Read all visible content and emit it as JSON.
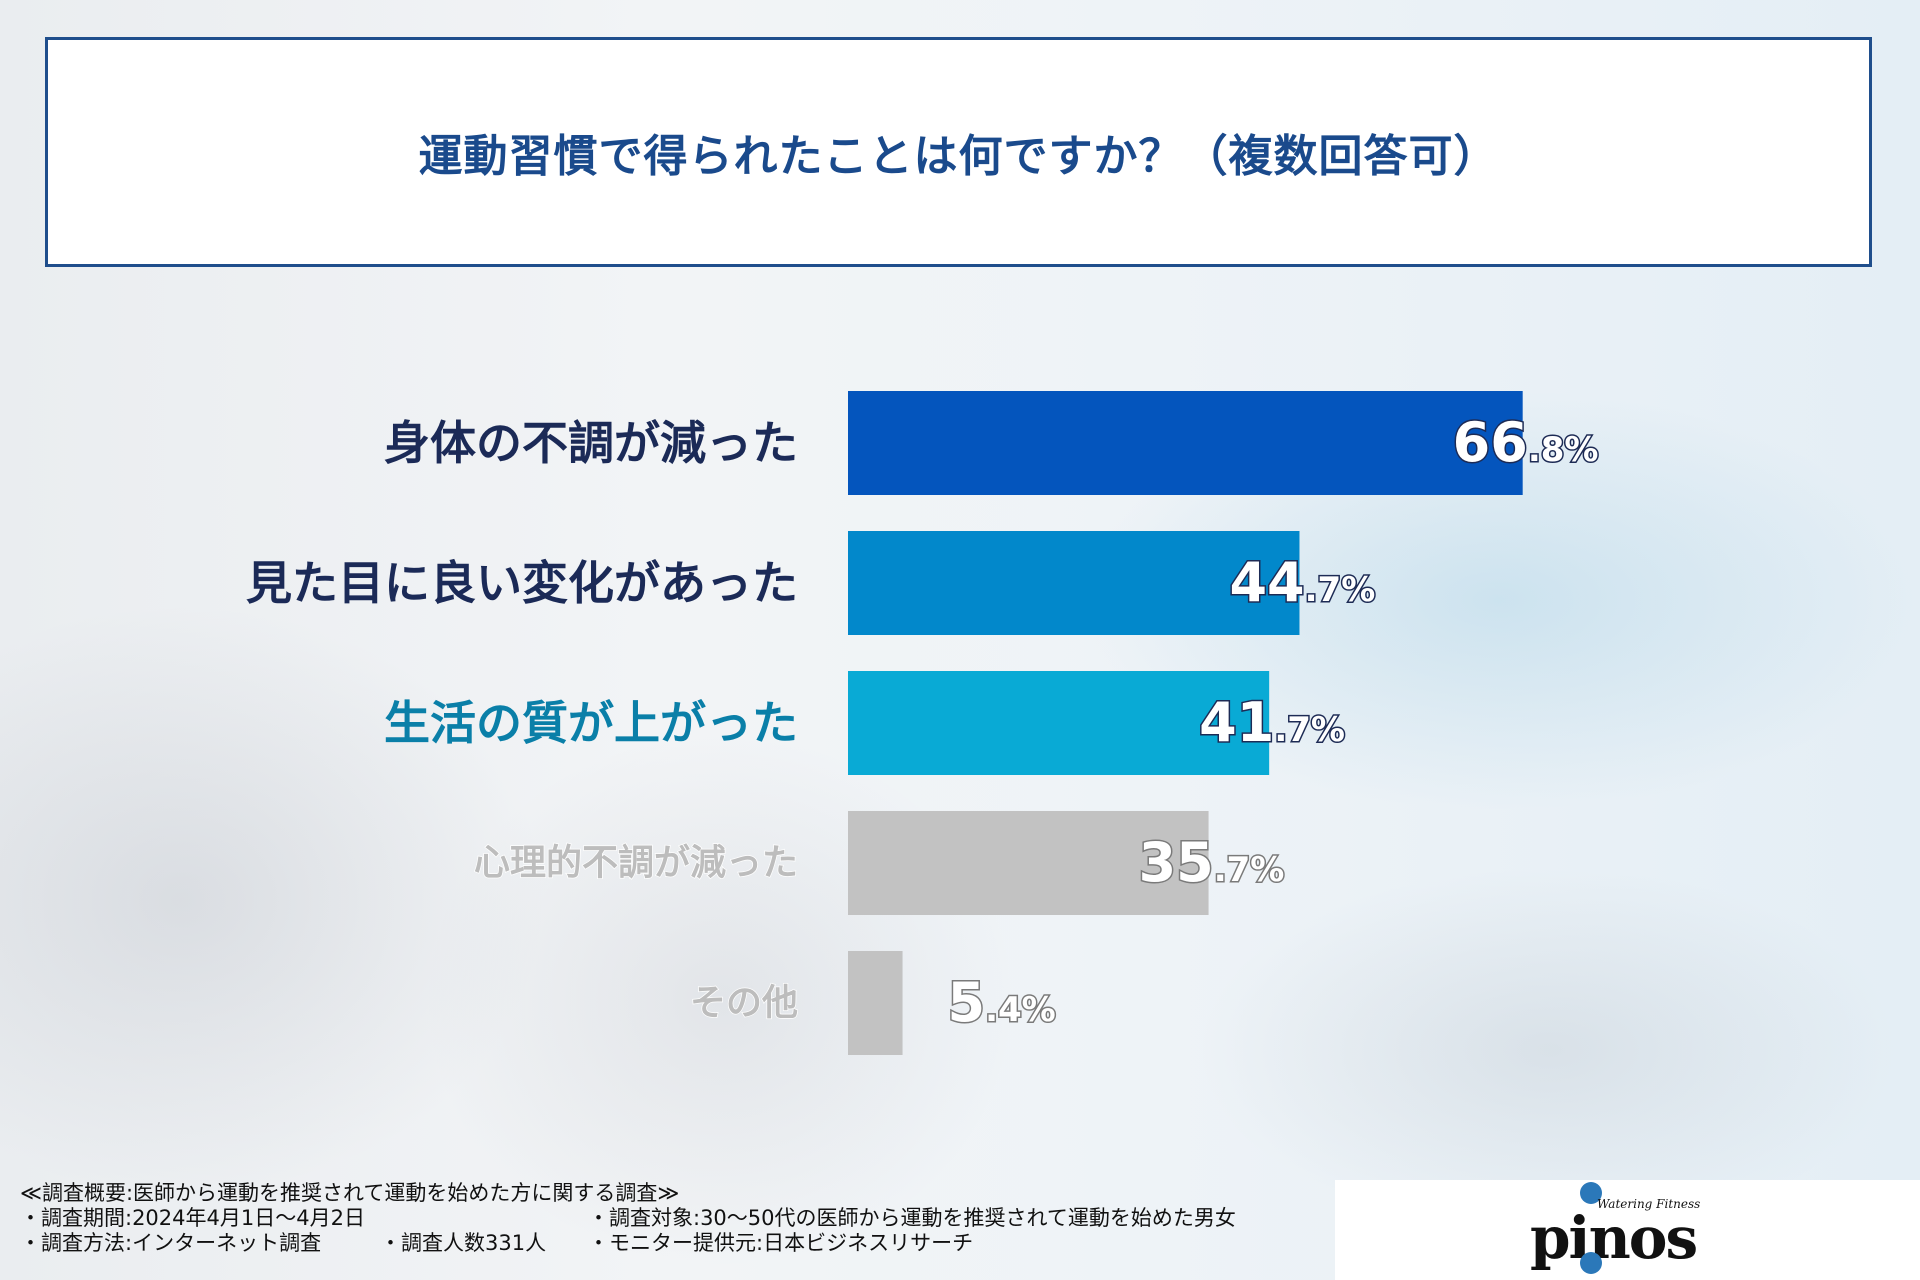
{
  "chart_data": {
    "type": "bar",
    "orientation": "horizontal",
    "title": "運動習慣で得られたことは何ですか？（複数回答可）",
    "categories": [
      "身体の不調が減った",
      "見た目に良い変化があった",
      "生活の質が上がった",
      "心理的不調が減った",
      "その他"
    ],
    "values": [
      66.8,
      44.7,
      41.7,
      35.7,
      5.4
    ],
    "value_labels": [
      {
        "int": "66",
        "dec": ".8%"
      },
      {
        "int": "44",
        "dec": ".7%"
      },
      {
        "int": "41",
        "dec": ".7%"
      },
      {
        "int": "35",
        "dec": ".7%"
      },
      {
        "int": "5",
        "dec": ".4%"
      }
    ],
    "bar_colors": [
      "#0455bd",
      "#0288cb",
      "#09aad5",
      "#c2c2c2",
      "#c2c2c2"
    ],
    "label_colors": [
      "#1b2a57",
      "#1b2a57",
      "#0a7fa8",
      "#bdbdbd",
      "#bdbdbd"
    ],
    "xlim": [
      0,
      100
    ],
    "grid": false,
    "legend": "none"
  },
  "footer": {
    "summary": "≪調査概要:医師から運動を推奨されて運動を始めた方に関する調査≫",
    "period": "・調査期間:2024年4月1日～4月2日",
    "target": "・調査対象:30～50代の医師から運動を推奨されて運動を始めた男女",
    "method": "・調査方法:インターネット調査",
    "count": "・調査人数331人",
    "provider": "・モニター提供元:日本ビジネスリサーチ"
  },
  "logo": {
    "text": "pinos",
    "tagline": "Watering Fitness"
  }
}
